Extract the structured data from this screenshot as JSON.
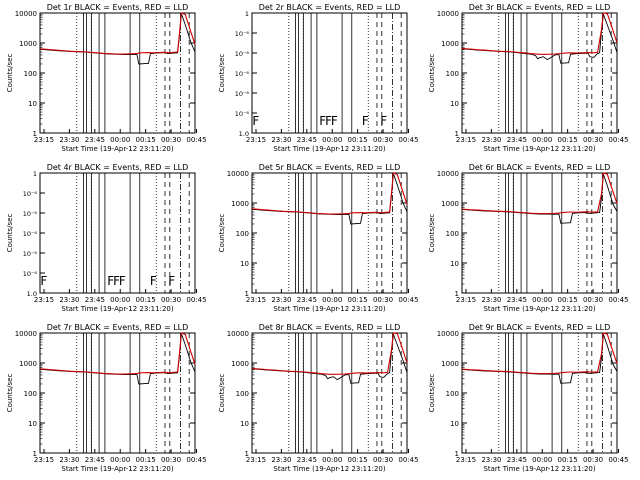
{
  "figure": {
    "xlabel": "Start Time (19-Apr-12 23:11:20)",
    "ylabel": "Counts/sec",
    "x_ticks": [
      "23:15",
      "23:30",
      "23:45",
      "00:00",
      "00:15",
      "00:30",
      "00:45"
    ],
    "colors": {
      "events": "#000000",
      "lld": "#d00000",
      "axes": "#000000",
      "background": "#ffffff"
    }
  },
  "chart_data": [
    {
      "type": "line",
      "title": "Det 1r  BLACK = Events, RED = LLD",
      "scale": "log",
      "ylim": [
        1,
        10000
      ],
      "y_ticks": [
        "1",
        "10",
        "100",
        "1000",
        "10000"
      ],
      "series": [
        {
          "name": "Events",
          "shape": "A"
        },
        {
          "name": "LLD",
          "shape": "A"
        }
      ],
      "flags": []
    },
    {
      "type": "line",
      "title": "Det 2r  BLACK = Events, RED = LLD",
      "scale": "tiny",
      "ylim": [
        1,
        1.000006
      ],
      "y_ticks": [
        "1",
        "1",
        "1",
        "1",
        "1",
        "1",
        "1"
      ],
      "y_tick_labels": [
        "1.0",
        "10⁻⁶",
        "10⁻⁶",
        "10⁻⁶",
        "10⁻⁶",
        "10⁻⁶",
        "1"
      ],
      "series": [],
      "flags": [
        "F",
        "F",
        "F",
        "F",
        "F",
        "F"
      ]
    },
    {
      "type": "line",
      "title": "Det 3r  BLACK = Events, RED = LLD",
      "scale": "log",
      "ylim": [
        1,
        10000
      ],
      "y_ticks": [
        "1",
        "10",
        "100",
        "1000",
        "10000"
      ],
      "series": [
        {
          "name": "Events",
          "shape": "B"
        },
        {
          "name": "LLD",
          "shape": "B"
        }
      ],
      "flags": []
    },
    {
      "type": "line",
      "title": "Det 4r  BLACK = Events, RED = LLD",
      "scale": "tiny",
      "ylim": [
        1,
        1.000006
      ],
      "y_ticks": [
        "1",
        "1",
        "1",
        "1",
        "1",
        "1",
        "1"
      ],
      "y_tick_labels": [
        "1.0",
        "10⁻⁶",
        "10⁻⁶",
        "10⁻⁶",
        "10⁻⁶",
        "10⁻⁶",
        "1"
      ],
      "series": [],
      "flags": [
        "F",
        "F",
        "F",
        "F",
        "F",
        "F"
      ]
    },
    {
      "type": "line",
      "title": "Det 5r  BLACK = Events, RED = LLD",
      "scale": "log",
      "ylim": [
        1,
        10000
      ],
      "y_ticks": [
        "1",
        "10",
        "100",
        "1000",
        "10000"
      ],
      "series": [
        {
          "name": "Events",
          "shape": "A"
        },
        {
          "name": "LLD",
          "shape": "A"
        }
      ],
      "flags": []
    },
    {
      "type": "line",
      "title": "Det 6r  BLACK = Events, RED = LLD",
      "scale": "log",
      "ylim": [
        1,
        10000
      ],
      "y_ticks": [
        "1",
        "10",
        "100",
        "1000",
        "10000"
      ],
      "series": [
        {
          "name": "Events",
          "shape": "C"
        },
        {
          "name": "LLD",
          "shape": "C"
        }
      ],
      "flags": []
    },
    {
      "type": "line",
      "title": "Det 7r  BLACK = Events, RED = LLD",
      "scale": "log",
      "ylim": [
        1,
        10000
      ],
      "y_ticks": [
        "1",
        "10",
        "100",
        "1000",
        "10000"
      ],
      "series": [
        {
          "name": "Events",
          "shape": "A"
        },
        {
          "name": "LLD",
          "shape": "A"
        }
      ],
      "flags": []
    },
    {
      "type": "line",
      "title": "Det 8r  BLACK = Events, RED = LLD",
      "scale": "log",
      "ylim": [
        1,
        10000
      ],
      "y_ticks": [
        "1",
        "10",
        "100",
        "1000",
        "10000"
      ],
      "series": [
        {
          "name": "Events",
          "shape": "B"
        },
        {
          "name": "LLD",
          "shape": "B"
        }
      ],
      "flags": []
    },
    {
      "type": "line",
      "title": "Det 9r  BLACK = Events, RED = LLD",
      "scale": "log",
      "ylim": [
        1,
        10000
      ],
      "y_ticks": [
        "1",
        "10",
        "100",
        "1000",
        "10000"
      ],
      "series": [
        {
          "name": "Events",
          "shape": "C"
        },
        {
          "name": "LLD",
          "shape": "C"
        }
      ],
      "flags": []
    }
  ],
  "shapes": {
    "A": {
      "Events": [
        [
          0,
          620
        ],
        [
          4,
          590
        ],
        [
          8,
          560
        ],
        [
          12,
          540
        ],
        [
          16,
          520
        ],
        [
          20,
          510
        ],
        [
          24,
          500
        ],
        [
          26,
          480
        ],
        [
          28,
          470
        ],
        [
          30,
          460
        ],
        [
          33,
          440
        ],
        [
          36,
          430
        ],
        [
          40,
          420
        ],
        [
          44,
          415
        ],
        [
          48,
          410
        ],
        [
          50,
          420
        ],
        [
          51,
          200
        ],
        [
          56,
          210
        ],
        [
          57,
          440
        ],
        [
          60,
          460
        ],
        [
          63,
          470
        ],
        [
          65,
          480
        ],
        [
          66,
          440
        ],
        [
          69,
          460
        ],
        [
          71,
          470
        ],
        [
          72,
          1800
        ],
        [
          73,
          9500
        ],
        [
          75,
          4000
        ],
        [
          78,
          1000
        ],
        [
          80,
          500
        ]
      ],
      "LLD": [
        [
          0,
          640
        ],
        [
          4,
          610
        ],
        [
          8,
          580
        ],
        [
          12,
          555
        ],
        [
          16,
          530
        ],
        [
          20,
          515
        ],
        [
          24,
          505
        ],
        [
          26,
          490
        ],
        [
          28,
          480
        ],
        [
          30,
          470
        ],
        [
          33,
          450
        ],
        [
          36,
          440
        ],
        [
          40,
          430
        ],
        [
          44,
          430
        ],
        [
          48,
          440
        ],
        [
          50,
          450
        ],
        [
          52,
          470
        ],
        [
          56,
          480
        ],
        [
          58,
          470
        ],
        [
          61,
          480
        ],
        [
          64,
          490
        ],
        [
          67,
          470
        ],
        [
          69,
          490
        ],
        [
          71,
          500
        ],
        [
          72,
          2200
        ],
        [
          73,
          10000
        ],
        [
          75,
          9000
        ],
        [
          77,
          3500
        ],
        [
          80,
          900
        ]
      ]
    },
    "B": {
      "Events": [
        [
          0,
          640
        ],
        [
          4,
          610
        ],
        [
          8,
          580
        ],
        [
          12,
          560
        ],
        [
          16,
          540
        ],
        [
          20,
          520
        ],
        [
          24,
          510
        ],
        [
          28,
          480
        ],
        [
          32,
          450
        ],
        [
          36,
          420
        ],
        [
          38,
          380
        ],
        [
          39,
          300
        ],
        [
          40,
          320
        ],
        [
          42,
          350
        ],
        [
          44,
          280
        ],
        [
          46,
          330
        ],
        [
          48,
          400
        ],
        [
          50,
          410
        ],
        [
          51,
          210
        ],
        [
          55,
          220
        ],
        [
          56,
          420
        ],
        [
          59,
          440
        ],
        [
          62,
          450
        ],
        [
          65,
          460
        ],
        [
          66,
          350
        ],
        [
          68,
          330
        ],
        [
          70,
          450
        ],
        [
          71,
          470
        ],
        [
          72,
          2500
        ],
        [
          73,
          9000
        ],
        [
          75,
          4000
        ],
        [
          78,
          1200
        ],
        [
          80,
          480
        ]
      ],
      "LLD": [
        [
          0,
          660
        ],
        [
          4,
          630
        ],
        [
          8,
          600
        ],
        [
          12,
          575
        ],
        [
          16,
          550
        ],
        [
          20,
          530
        ],
        [
          24,
          520
        ],
        [
          28,
          495
        ],
        [
          32,
          470
        ],
        [
          36,
          440
        ],
        [
          40,
          420
        ],
        [
          44,
          420
        ],
        [
          48,
          430
        ],
        [
          50,
          440
        ],
        [
          53,
          460
        ],
        [
          56,
          470
        ],
        [
          59,
          460
        ],
        [
          62,
          470
        ],
        [
          65,
          480
        ],
        [
          68,
          470
        ],
        [
          70,
          490
        ],
        [
          72,
          2800
        ],
        [
          73,
          10000
        ],
        [
          75,
          9500
        ],
        [
          77,
          4000
        ],
        [
          80,
          1000
        ]
      ]
    },
    "C": {
      "Events": [
        [
          0,
          610
        ],
        [
          4,
          580
        ],
        [
          8,
          560
        ],
        [
          12,
          540
        ],
        [
          16,
          530
        ],
        [
          20,
          515
        ],
        [
          24,
          505
        ],
        [
          28,
          480
        ],
        [
          32,
          460
        ],
        [
          36,
          440
        ],
        [
          40,
          430
        ],
        [
          44,
          425
        ],
        [
          48,
          420
        ],
        [
          50,
          430
        ],
        [
          51,
          210
        ],
        [
          56,
          220
        ],
        [
          57,
          450
        ],
        [
          60,
          470
        ],
        [
          63,
          480
        ],
        [
          66,
          450
        ],
        [
          69,
          470
        ],
        [
          71,
          480
        ],
        [
          72,
          1500
        ],
        [
          73,
          9000
        ],
        [
          75,
          3800
        ],
        [
          78,
          900
        ],
        [
          80,
          520
        ]
      ],
      "LLD": [
        [
          0,
          630
        ],
        [
          4,
          600
        ],
        [
          8,
          580
        ],
        [
          12,
          560
        ],
        [
          16,
          545
        ],
        [
          20,
          530
        ],
        [
          24,
          515
        ],
        [
          28,
          495
        ],
        [
          32,
          475
        ],
        [
          36,
          455
        ],
        [
          40,
          445
        ],
        [
          44,
          445
        ],
        [
          48,
          455
        ],
        [
          50,
          465
        ],
        [
          53,
          490
        ],
        [
          56,
          500
        ],
        [
          59,
          490
        ],
        [
          62,
          500
        ],
        [
          65,
          510
        ],
        [
          68,
          495
        ],
        [
          70,
          510
        ],
        [
          72,
          2000
        ],
        [
          73,
          10000
        ],
        [
          75,
          9200
        ],
        [
          77,
          3600
        ],
        [
          80,
          950
        ]
      ]
    }
  },
  "markers": {
    "dotted": [
      19,
      26.5,
      60
    ],
    "solid": [
      22.5,
      24,
      26.5,
      30.5,
      33.5,
      46.5,
      51.5
    ],
    "dashed": [
      64.5,
      67,
      77
    ],
    "dashdot": [
      72.5
    ]
  }
}
